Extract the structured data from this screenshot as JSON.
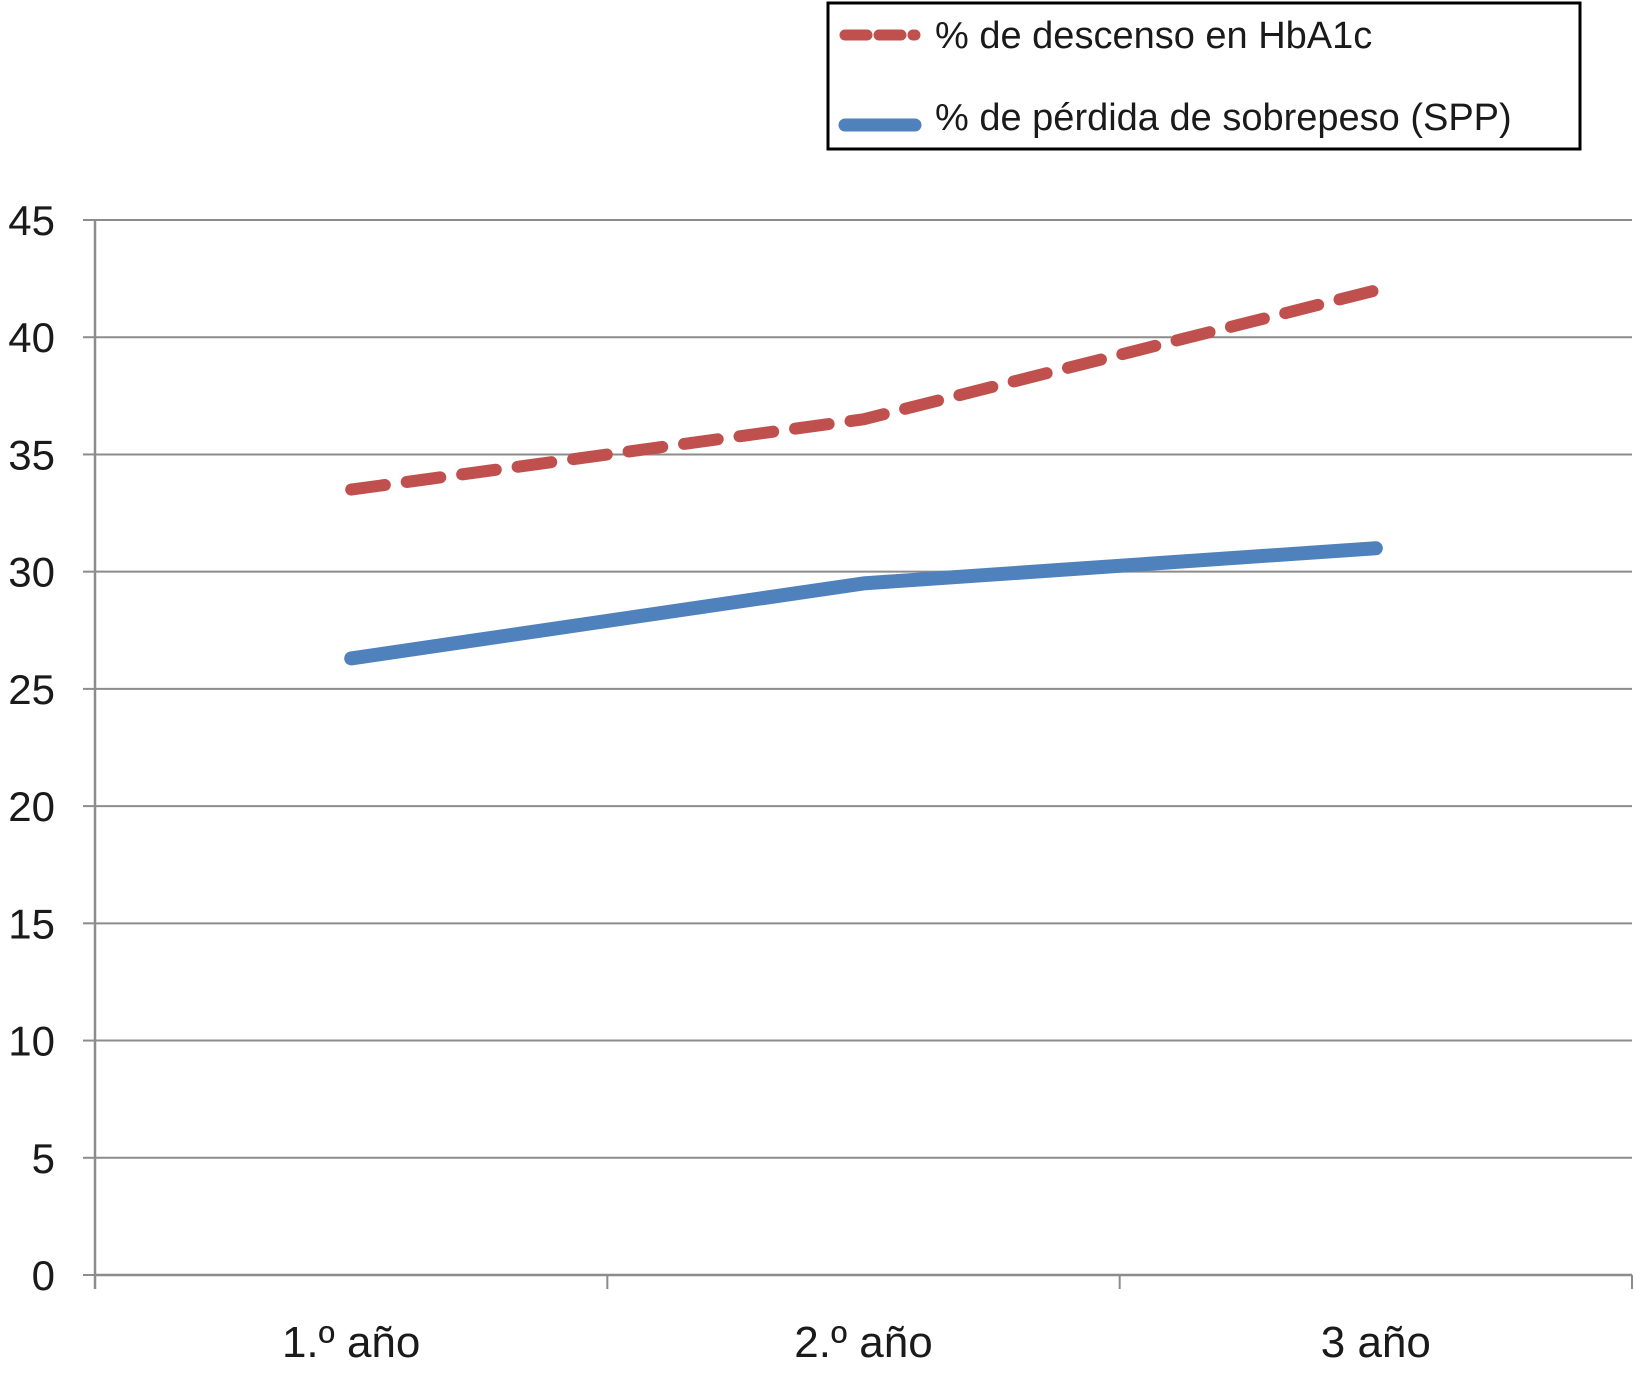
{
  "chart_data": {
    "type": "line",
    "categories": [
      "1.º año",
      "2.º año",
      "3 año"
    ],
    "series": [
      {
        "name": "% de descenso en HbA1c",
        "values": [
          33.5,
          36.5,
          42
        ],
        "color": "#c0504d",
        "dash": true
      },
      {
        "name": "% de pérdida de sobrepeso (SPP)",
        "values": [
          26.3,
          29.5,
          31
        ],
        "color": "#4f81bd",
        "dash": false
      }
    ],
    "y_ticks": [
      "0",
      "5",
      "10",
      "15",
      "20",
      "25",
      "30",
      "35",
      "40",
      "45"
    ],
    "ylim": [
      0,
      45
    ],
    "grid": true,
    "legend_position": "top-right"
  }
}
